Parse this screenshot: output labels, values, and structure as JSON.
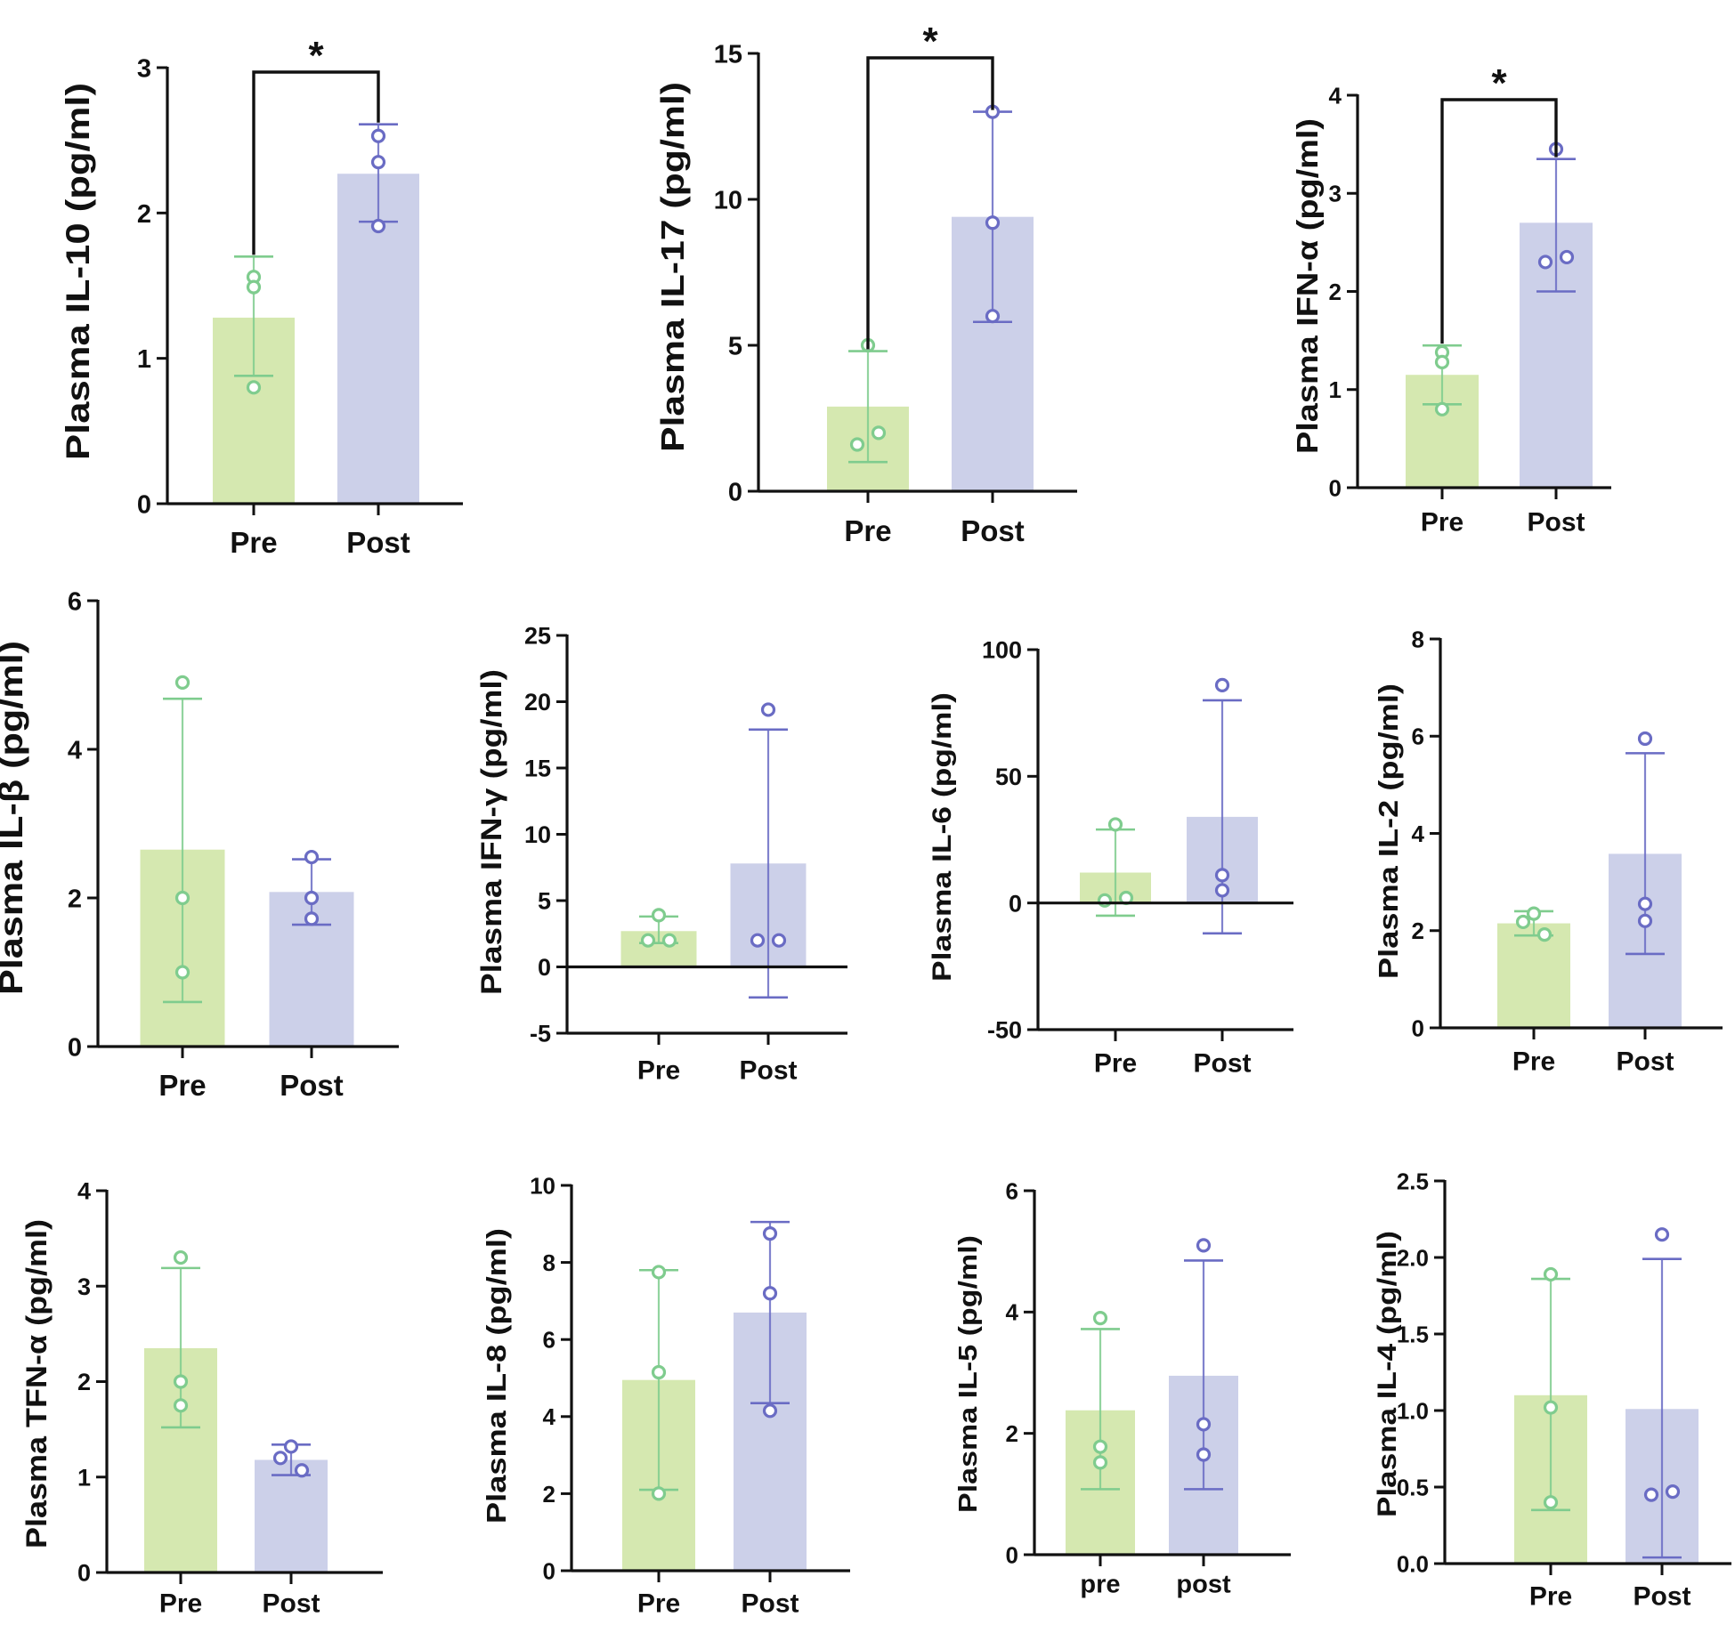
{
  "figure": {
    "colors": {
      "pre": "#d5e8b0",
      "pre_edge": "#7fcc8e",
      "post": "#ccd0e9",
      "post_edge": "#6a6cc4",
      "axis": "#111111"
    },
    "charts": [
      {
        "id": "il10",
        "label": "Plasma IL-10 (pg/ml)",
        "categories": [
          "Pre",
          "Post"
        ],
        "ticks": [
          "0",
          "1",
          "2",
          "3"
        ],
        "ylim": [
          0,
          3
        ],
        "bars": [
          1.28,
          2.27
        ],
        "errors": [
          [
            0.88,
            1.7
          ],
          [
            1.94,
            2.61
          ]
        ],
        "points": [
          [
            1.56,
            1.49,
            0.8
          ],
          [
            2.53,
            2.35,
            1.91
          ]
        ],
        "sig": "*"
      },
      {
        "id": "il17",
        "label": "Plasma IL-17 (pg/ml)",
        "categories": [
          "Pre",
          "Post"
        ],
        "ticks": [
          "0",
          "5",
          "10",
          "15"
        ],
        "ylim": [
          0,
          15
        ],
        "bars": [
          2.9,
          9.4
        ],
        "errors": [
          [
            1.0,
            4.8
          ],
          [
            5.8,
            13.0
          ]
        ],
        "points": [
          [
            5.0,
            1.6,
            2.0
          ],
          [
            13.0,
            9.2,
            6.0
          ]
        ],
        "sig": "*"
      },
      {
        "id": "ifna",
        "label": "Plasma IFN-α (pg/ml)",
        "categories": [
          "Pre",
          "Post"
        ],
        "ticks": [
          "0",
          "1",
          "2",
          "3",
          "4"
        ],
        "ylim": [
          0,
          4
        ],
        "bars": [
          1.15,
          2.7
        ],
        "errors": [
          [
            0.85,
            1.45
          ],
          [
            2.0,
            3.35
          ]
        ],
        "points": [
          [
            1.38,
            1.28,
            0.8
          ],
          [
            3.45,
            2.3,
            2.35
          ]
        ],
        "sig": "*"
      },
      {
        "id": "il1b",
        "label": "Plasma IL-β (pg/ml)",
        "categories": [
          "Pre",
          "Post"
        ],
        "ticks": [
          "0",
          "2",
          "4",
          "6"
        ],
        "ylim": [
          0,
          6
        ],
        "bars": [
          2.65,
          2.08
        ],
        "errors": [
          [
            0.6,
            4.68
          ],
          [
            1.64,
            2.52
          ]
        ],
        "points": [
          [
            4.9,
            2.0,
            1.0
          ],
          [
            2.55,
            2.0,
            1.72
          ]
        ]
      },
      {
        "id": "ifng",
        "label": "Plasma IFN-γ (pg/ml)",
        "categories": [
          "Pre",
          "Post"
        ],
        "ticks": [
          "-5",
          "0",
          "5",
          "10",
          "15",
          "20",
          "25"
        ],
        "ylim": [
          -5,
          25
        ],
        "bars": [
          2.7,
          7.8
        ],
        "errors": [
          [
            1.8,
            3.8
          ],
          [
            -2.3,
            17.9
          ]
        ],
        "points": [
          [
            3.9,
            2.0,
            2.0
          ],
          [
            19.4,
            2.0,
            2.0
          ]
        ]
      },
      {
        "id": "il6",
        "label": "Plasma IL-6 (pg/ml)",
        "categories": [
          "Pre",
          "Post"
        ],
        "ticks": [
          "-50",
          "0",
          "50",
          "100"
        ],
        "ylim": [
          -50,
          100
        ],
        "bars": [
          12,
          34
        ],
        "errors": [
          [
            -5,
            29
          ],
          [
            -12,
            80
          ]
        ],
        "points": [
          [
            31,
            1,
            2
          ],
          [
            86,
            11,
            5
          ]
        ]
      },
      {
        "id": "il2",
        "label": "Plasma IL-2 (pg/ml)",
        "categories": [
          "Pre",
          "Post"
        ],
        "ticks": [
          "0",
          "2",
          "4",
          "6",
          "8"
        ],
        "ylim": [
          0,
          8
        ],
        "bars": [
          2.15,
          3.58
        ],
        "errors": [
          [
            1.9,
            2.4
          ],
          [
            1.52,
            5.65
          ]
        ],
        "points": [
          [
            2.35,
            2.18,
            1.92
          ],
          [
            5.95,
            2.55,
            2.2
          ]
        ]
      },
      {
        "id": "tnfa",
        "label": "Plasma TFN-α (pg/ml)",
        "categories": [
          "Pre",
          "Post"
        ],
        "ticks": [
          "0",
          "1",
          "2",
          "3",
          "4"
        ],
        "ylim": [
          0,
          4
        ],
        "bars": [
          2.35,
          1.18
        ],
        "errors": [
          [
            1.52,
            3.19
          ],
          [
            1.02,
            1.34
          ]
        ],
        "points": [
          [
            3.3,
            2.0,
            1.75
          ],
          [
            1.32,
            1.2,
            1.07
          ]
        ]
      },
      {
        "id": "il8",
        "label": "Plasma IL-8 (pg/ml)",
        "categories": [
          "Pre",
          "Post"
        ],
        "ticks": [
          "0",
          "2",
          "4",
          "6",
          "8",
          "10"
        ],
        "ylim": [
          0,
          10
        ],
        "bars": [
          4.95,
          6.7
        ],
        "errors": [
          [
            2.1,
            7.8
          ],
          [
            4.35,
            9.05
          ]
        ],
        "points": [
          [
            7.75,
            5.15,
            2.0
          ],
          [
            8.75,
            7.2,
            4.15
          ]
        ]
      },
      {
        "id": "il5",
        "label": "Plasma IL-5 (pg/ml)",
        "categories": [
          "pre",
          "post"
        ],
        "ticks": [
          "0",
          "2",
          "4",
          "6"
        ],
        "ylim": [
          0,
          6
        ],
        "bars": [
          2.38,
          2.95
        ],
        "errors": [
          [
            1.08,
            3.72
          ],
          [
            1.08,
            4.85
          ]
        ],
        "points": [
          [
            3.9,
            1.78,
            1.52
          ],
          [
            5.1,
            2.15,
            1.65
          ]
        ]
      },
      {
        "id": "il4",
        "label": "Plasma IL-4 (pg/ml)",
        "categories": [
          "Pre",
          "Post"
        ],
        "ticks": [
          "0.0",
          "0.5",
          "1.0",
          "1.5",
          "2.0",
          "2.5"
        ],
        "ylim": [
          0,
          2.5
        ],
        "bars": [
          1.1,
          1.01
        ],
        "errors": [
          [
            0.35,
            1.86
          ],
          [
            0.04,
            1.99
          ]
        ],
        "points": [
          [
            1.89,
            1.02,
            0.4
          ],
          [
            2.15,
            0.45,
            0.47
          ]
        ]
      }
    ]
  },
  "chart_data": [
    {
      "type": "bar",
      "title": "",
      "ylabel": "Plasma IL-10 (pg/ml)",
      "categories": [
        "Pre",
        "Post"
      ],
      "values": [
        1.28,
        2.27
      ],
      "ylim": [
        0,
        3
      ],
      "error_bars": [
        [
          0.88,
          1.7
        ],
        [
          1.94,
          2.61
        ]
      ],
      "individual_points": [
        [
          1.56,
          1.49,
          0.8
        ],
        [
          2.53,
          2.35,
          1.91
        ]
      ],
      "annotation": "*"
    },
    {
      "type": "bar",
      "title": "",
      "ylabel": "Plasma IL-17 (pg/ml)",
      "categories": [
        "Pre",
        "Post"
      ],
      "values": [
        2.9,
        9.4
      ],
      "ylim": [
        0,
        15
      ],
      "error_bars": [
        [
          1.0,
          4.8
        ],
        [
          5.8,
          13.0
        ]
      ],
      "individual_points": [
        [
          5.0,
          1.6,
          2.0
        ],
        [
          13.0,
          9.2,
          6.0
        ]
      ],
      "annotation": "*"
    },
    {
      "type": "bar",
      "title": "",
      "ylabel": "Plasma IFN-α (pg/ml)",
      "categories": [
        "Pre",
        "Post"
      ],
      "values": [
        1.15,
        2.7
      ],
      "ylim": [
        0,
        4
      ],
      "error_bars": [
        [
          0.85,
          1.45
        ],
        [
          2.0,
          3.35
        ]
      ],
      "individual_points": [
        [
          1.38,
          1.28,
          0.8
        ],
        [
          3.45,
          2.3,
          2.35
        ]
      ],
      "annotation": "*"
    },
    {
      "type": "bar",
      "title": "",
      "ylabel": "Plasma IL-β (pg/ml)",
      "categories": [
        "Pre",
        "Post"
      ],
      "values": [
        2.65,
        2.08
      ],
      "ylim": [
        0,
        6
      ],
      "error_bars": [
        [
          0.6,
          4.68
        ],
        [
          1.64,
          2.52
        ]
      ],
      "individual_points": [
        [
          4.9,
          2.0,
          1.0
        ],
        [
          2.55,
          2.0,
          1.72
        ]
      ]
    },
    {
      "type": "bar",
      "title": "",
      "ylabel": "Plasma IFN-γ (pg/ml)",
      "categories": [
        "Pre",
        "Post"
      ],
      "values": [
        2.7,
        7.8
      ],
      "ylim": [
        -5,
        25
      ],
      "error_bars": [
        [
          1.8,
          3.8
        ],
        [
          -2.3,
          17.9
        ]
      ],
      "individual_points": [
        [
          3.9,
          2.0,
          2.0
        ],
        [
          19.4,
          2.0,
          2.0
        ]
      ]
    },
    {
      "type": "bar",
      "title": "",
      "ylabel": "Plasma IL-6 (pg/ml)",
      "categories": [
        "Pre",
        "Post"
      ],
      "values": [
        12,
        34
      ],
      "ylim": [
        -50,
        100
      ],
      "error_bars": [
        [
          -5,
          29
        ],
        [
          -12,
          80
        ]
      ],
      "individual_points": [
        [
          31,
          1,
          2
        ],
        [
          86,
          11,
          5
        ]
      ]
    },
    {
      "type": "bar",
      "title": "",
      "ylabel": "Plasma IL-2 (pg/ml)",
      "categories": [
        "Pre",
        "Post"
      ],
      "values": [
        2.15,
        3.58
      ],
      "ylim": [
        0,
        8
      ],
      "error_bars": [
        [
          1.9,
          2.4
        ],
        [
          1.52,
          5.65
        ]
      ],
      "individual_points": [
        [
          2.35,
          2.18,
          1.92
        ],
        [
          5.95,
          2.55,
          2.2
        ]
      ]
    },
    {
      "type": "bar",
      "title": "",
      "ylabel": "Plasma TFN-α (pg/ml)",
      "categories": [
        "Pre",
        "Post"
      ],
      "values": [
        2.35,
        1.18
      ],
      "ylim": [
        0,
        4
      ],
      "error_bars": [
        [
          1.52,
          3.19
        ],
        [
          1.02,
          1.34
        ]
      ],
      "individual_points": [
        [
          3.3,
          2.0,
          1.75
        ],
        [
          1.32,
          1.2,
          1.07
        ]
      ]
    },
    {
      "type": "bar",
      "title": "",
      "ylabel": "Plasma IL-8 (pg/ml)",
      "categories": [
        "Pre",
        "Post"
      ],
      "values": [
        4.95,
        6.7
      ],
      "ylim": [
        0,
        10
      ],
      "error_bars": [
        [
          2.1,
          7.8
        ],
        [
          4.35,
          9.05
        ]
      ],
      "individual_points": [
        [
          7.75,
          5.15,
          2.0
        ],
        [
          8.75,
          7.2,
          4.15
        ]
      ]
    },
    {
      "type": "bar",
      "title": "",
      "ylabel": "Plasma IL-5 (pg/ml)",
      "categories": [
        "pre",
        "post"
      ],
      "values": [
        2.38,
        2.95
      ],
      "ylim": [
        0,
        6
      ],
      "error_bars": [
        [
          1.08,
          3.72
        ],
        [
          1.08,
          4.85
        ]
      ],
      "individual_points": [
        [
          3.9,
          1.78,
          1.52
        ],
        [
          5.1,
          2.15,
          1.65
        ]
      ]
    },
    {
      "type": "bar",
      "title": "",
      "ylabel": "Plasma IL-4 (pg/ml)",
      "categories": [
        "Pre",
        "Post"
      ],
      "values": [
        1.1,
        1.01
      ],
      "ylim": [
        0,
        2.5
      ],
      "error_bars": [
        [
          0.35,
          1.86
        ],
        [
          0.04,
          1.99
        ]
      ],
      "individual_points": [
        [
          1.89,
          1.02,
          0.4
        ],
        [
          2.15,
          0.45,
          0.47
        ]
      ]
    }
  ]
}
